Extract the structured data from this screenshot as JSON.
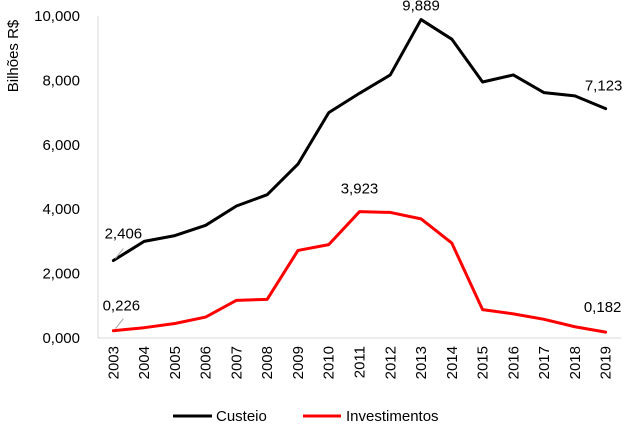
{
  "chart_data": {
    "type": "line",
    "title": "",
    "xlabel": "",
    "ylabel": "Bilhões R$",
    "ylim": [
      0,
      10
    ],
    "yticks": [
      0,
      2,
      4,
      6,
      8,
      10
    ],
    "ytick_labels": [
      "0,000",
      "2,000",
      "4,000",
      "6,000",
      "8,000",
      "10,000"
    ],
    "grid": false,
    "legend_position": "bottom",
    "categories": [
      "2003",
      "2004",
      "2005",
      "2006",
      "2007",
      "2008",
      "2009",
      "2010",
      "2011",
      "2012",
      "2013",
      "2014",
      "2015",
      "2016",
      "2017",
      "2018",
      "2019"
    ],
    "series": [
      {
        "name": "Custeio",
        "color": "#000000",
        "values": [
          2.406,
          3.0,
          3.18,
          3.5,
          4.1,
          4.45,
          5.4,
          7.0,
          7.6,
          8.17,
          9.889,
          9.28,
          7.95,
          8.17,
          7.62,
          7.52,
          7.123
        ]
      },
      {
        "name": "Investimentos",
        "color": "#ff0000",
        "values": [
          0.226,
          0.32,
          0.45,
          0.65,
          1.17,
          1.2,
          2.72,
          2.9,
          3.923,
          3.9,
          3.7,
          2.95,
          0.88,
          0.75,
          0.58,
          0.35,
          0.182
        ]
      }
    ],
    "data_labels": [
      {
        "series": 0,
        "index": 0,
        "text": "2,406"
      },
      {
        "series": 0,
        "index": 10,
        "text": "9,889"
      },
      {
        "series": 0,
        "index": 16,
        "text": "7,123"
      },
      {
        "series": 1,
        "index": 0,
        "text": "0,226"
      },
      {
        "series": 1,
        "index": 8,
        "text": "3,923"
      },
      {
        "series": 1,
        "index": 16,
        "text": "0,182"
      }
    ]
  }
}
